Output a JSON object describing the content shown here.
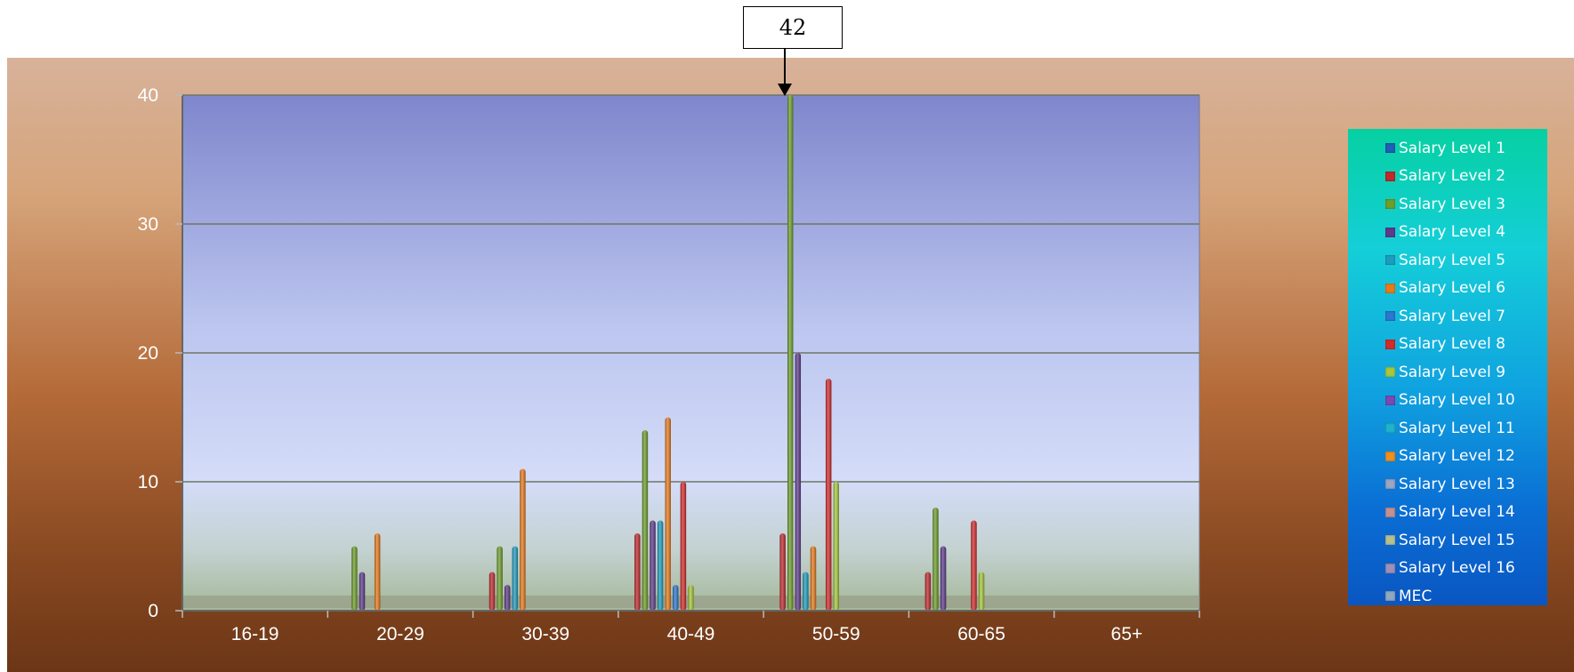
{
  "callout": {
    "text": "42"
  },
  "colors": {
    "Salary Level 1": "#1f5fb5",
    "Salary Level 2": "#c0282c",
    "Salary Level 3": "#6e9e2a",
    "Salary Level 4": "#5d3a8c",
    "Salary Level 5": "#1e9cc0",
    "Salary Level 6": "#e87a1a",
    "Salary Level 7": "#2c76d0",
    "Salary Level 8": "#d42a2a",
    "Salary Level 9": "#a6c93a",
    "Salary Level 10": "#7a4ab0",
    "Salary Level 11": "#20b4cc",
    "Salary Level 12": "#f0901e",
    "Salary Level 13": "#9aa6c4",
    "Salary Level 14": "#c49090",
    "Salary Level 15": "#b8c090",
    "Salary Level 16": "#a090b8",
    "MEC": "#90a8c0"
  },
  "chart_data": {
    "type": "bar",
    "title": "",
    "xlabel": "",
    "ylabel": "",
    "ylim": [
      0,
      40
    ],
    "yticks": [
      0,
      10,
      20,
      30,
      40
    ],
    "grid": true,
    "legend": "right",
    "categories": [
      "16-19",
      "20-29",
      "30-39",
      "40-49",
      "50-59",
      "60-65",
      "65+"
    ],
    "series": [
      {
        "name": "Salary Level 1",
        "values": [
          0,
          0,
          0,
          0,
          0,
          0,
          0
        ]
      },
      {
        "name": "Salary Level 2",
        "values": [
          0,
          0,
          3,
          6,
          6,
          3,
          0
        ]
      },
      {
        "name": "Salary Level 3",
        "values": [
          0,
          5,
          5,
          14,
          42,
          8,
          0
        ]
      },
      {
        "name": "Salary Level 4",
        "values": [
          0,
          3,
          2,
          7,
          20,
          5,
          0
        ]
      },
      {
        "name": "Salary Level 5",
        "values": [
          0,
          0,
          5,
          7,
          3,
          0,
          0
        ]
      },
      {
        "name": "Salary Level 6",
        "values": [
          0,
          6,
          11,
          15,
          5,
          0,
          0
        ]
      },
      {
        "name": "Salary Level 7",
        "values": [
          0,
          0,
          0,
          2,
          0,
          0,
          0
        ]
      },
      {
        "name": "Salary Level 8",
        "values": [
          0,
          0,
          0,
          10,
          18,
          7,
          0
        ]
      },
      {
        "name": "Salary Level 9",
        "values": [
          0,
          0,
          0,
          2,
          10,
          3,
          0
        ]
      },
      {
        "name": "Salary Level 10",
        "values": [
          0,
          0,
          0,
          0,
          0,
          0,
          0
        ]
      },
      {
        "name": "Salary Level 11",
        "values": [
          0,
          0,
          0,
          0,
          0,
          0,
          0
        ]
      },
      {
        "name": "Salary Level 12",
        "values": [
          0,
          0,
          0,
          0,
          0,
          0,
          0
        ]
      },
      {
        "name": "Salary Level 13",
        "values": [
          0,
          0,
          0,
          0,
          0,
          0,
          0
        ]
      },
      {
        "name": "Salary Level 14",
        "values": [
          0,
          0,
          0,
          0,
          0,
          0,
          0
        ]
      },
      {
        "name": "Salary Level 15",
        "values": [
          0,
          0,
          0,
          0,
          0,
          0,
          0
        ]
      },
      {
        "name": "Salary Level 16",
        "values": [
          0,
          0,
          0,
          0,
          0,
          0,
          0
        ]
      },
      {
        "name": "MEC",
        "values": [
          0,
          0,
          0,
          0,
          0,
          0,
          0
        ]
      }
    ]
  }
}
